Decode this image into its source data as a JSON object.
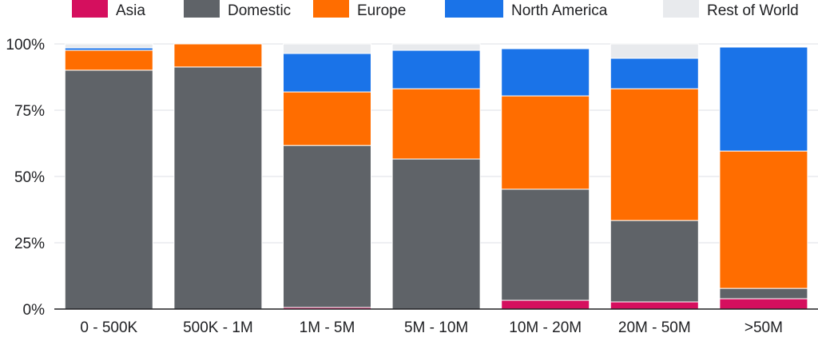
{
  "chart_data": {
    "type": "bar",
    "stacked": true,
    "legend_position": "top",
    "grid": true,
    "categories": [
      "0 - 500K",
      "500K - 1M",
      "1M - 5M",
      "5M - 10M",
      "10M - 20M",
      "20M - 50M",
      ">50M"
    ],
    "ylim": [
      0,
      100
    ],
    "yticks": [
      "0%",
      "25%",
      "50%",
      "75%",
      "100%"
    ],
    "series": [
      {
        "name": "Asia",
        "color": "#d50f5e",
        "values": [
          0,
          0,
          0.6,
          0,
          3.3,
          2.7,
          3.9
        ]
      },
      {
        "name": "Domestic",
        "color": "#5f6368",
        "values": [
          90.1,
          91.3,
          61.1,
          56.6,
          41.9,
          30.7,
          3.9
        ]
      },
      {
        "name": "Europe",
        "color": "#ff6d00",
        "values": [
          7.5,
          8.7,
          20.2,
          26.5,
          35.2,
          49.7,
          51.8
        ]
      },
      {
        "name": "North America",
        "color": "#1a73e8",
        "values": [
          0.9,
          0,
          14.5,
          14.5,
          17.8,
          11.5,
          39.2
        ]
      },
      {
        "name": "Rest of World",
        "color": "#e8eaed",
        "values": [
          1.5,
          0,
          3.6,
          2.4,
          0,
          5.4,
          0
        ]
      }
    ]
  }
}
